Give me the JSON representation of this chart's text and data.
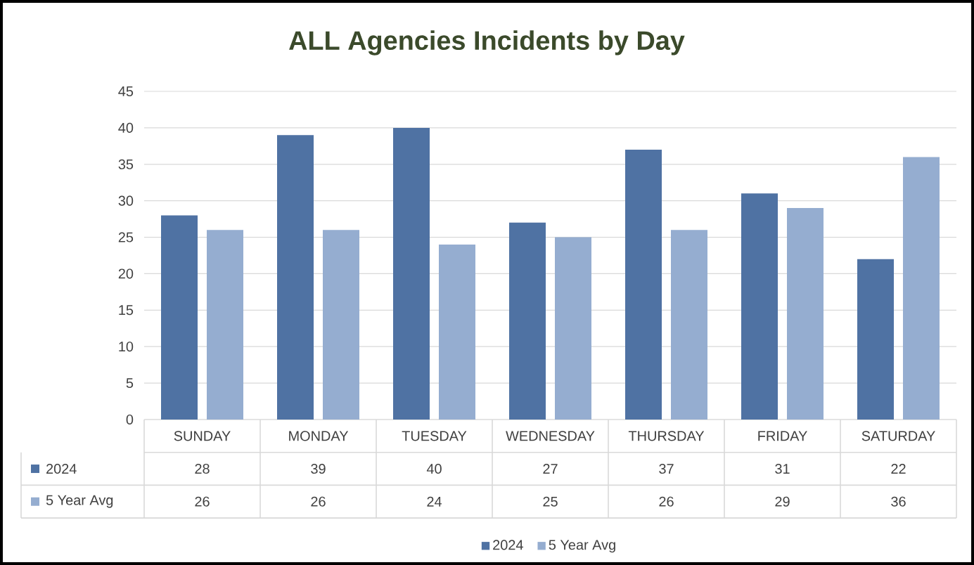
{
  "chart_data": {
    "type": "bar",
    "title": "ALL Agencies Incidents by Day",
    "categories": [
      "SUNDAY",
      "MONDAY",
      "TUESDAY",
      "WEDNESDAY",
      "THURSDAY",
      "FRIDAY",
      "SATURDAY"
    ],
    "series": [
      {
        "name": "2024",
        "color": "#4f72a3",
        "values": [
          28,
          39,
          40,
          27,
          37,
          31,
          22
        ]
      },
      {
        "name": "5 Year Avg",
        "color": "#95add0",
        "values": [
          26,
          26,
          24,
          25,
          26,
          29,
          36
        ]
      }
    ],
    "ylim": [
      0,
      45
    ],
    "yticks": [
      0,
      5,
      10,
      15,
      20,
      25,
      30,
      35,
      40,
      45
    ],
    "grid": "y",
    "legend": "bottom",
    "data_labels": true
  }
}
